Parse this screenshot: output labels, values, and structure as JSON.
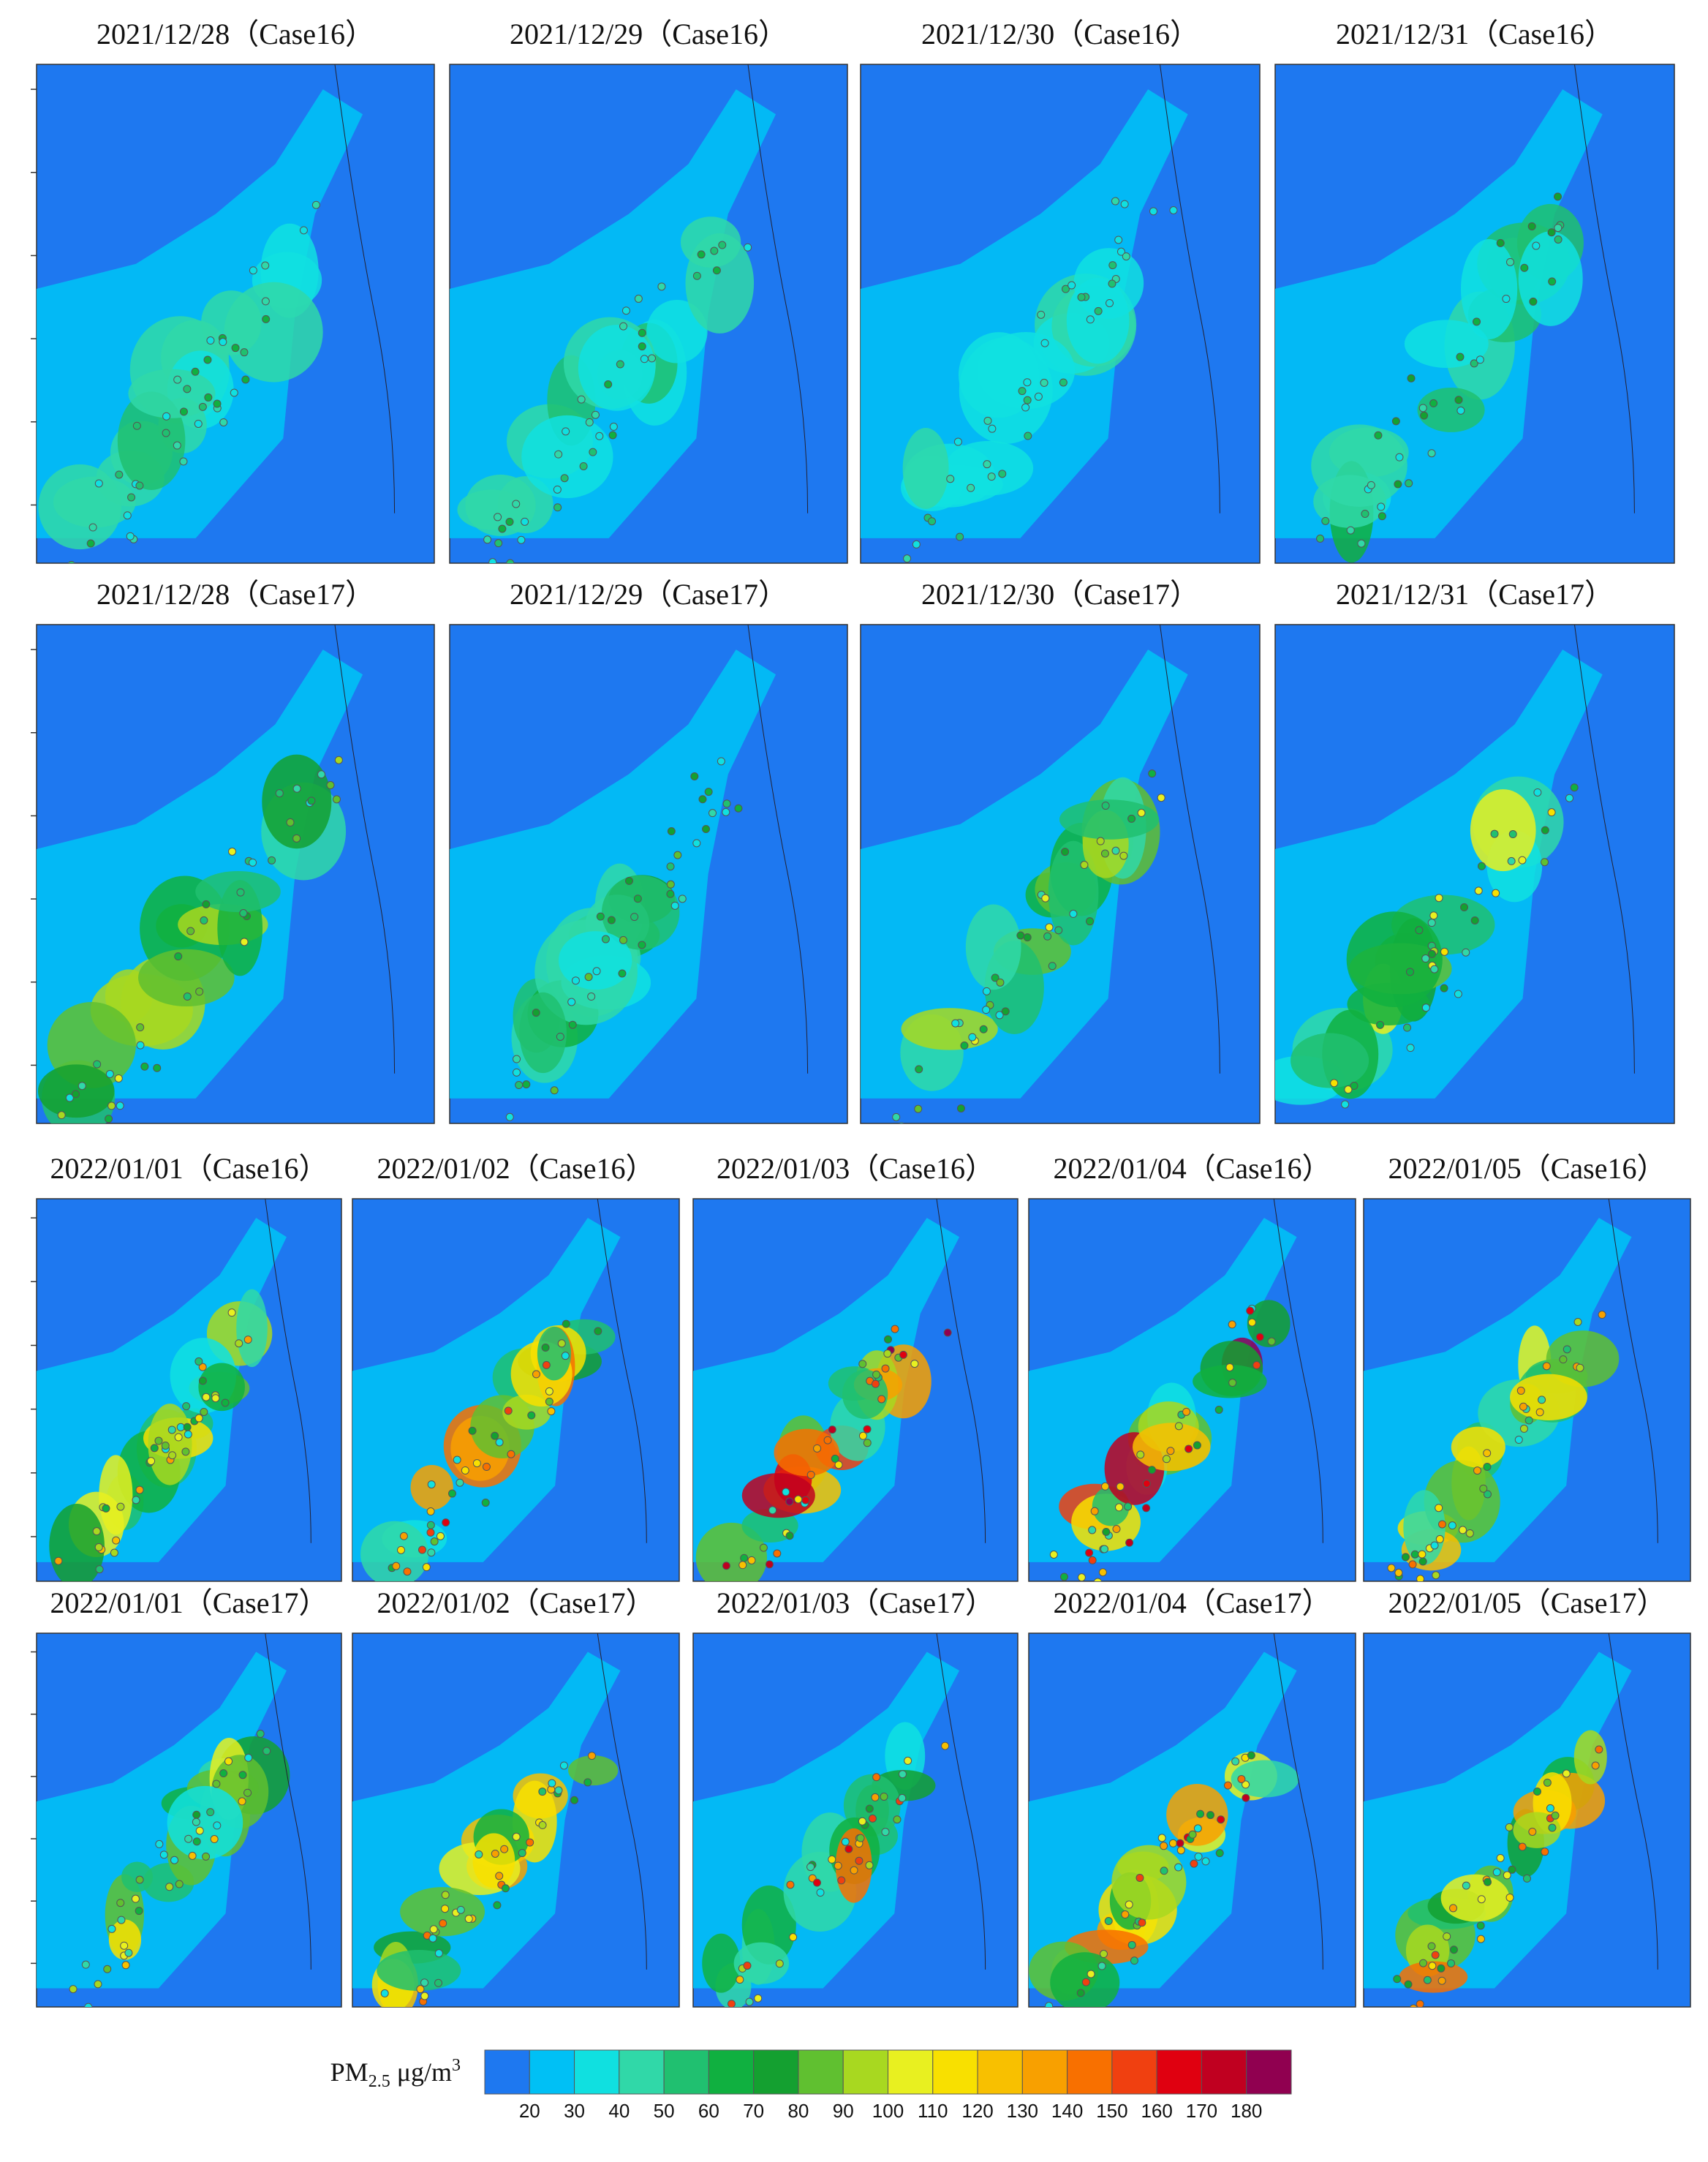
{
  "panels": [
    {
      "title": "2021/12/28（Case16）"
    },
    {
      "title": "2021/12/29（Case16）"
    },
    {
      "title": "2021/12/30（Case16）"
    },
    {
      "title": "2021/12/31（Case16）"
    },
    {
      "title": "2021/12/28（Case17）"
    },
    {
      "title": "2021/12/29（Case17）"
    },
    {
      "title": "2021/12/30（Case17）"
    },
    {
      "title": "2021/12/31（Case17）"
    },
    {
      "title": "2022/01/01（Case16）"
    },
    {
      "title": "2022/01/02（Case16）"
    },
    {
      "title": "2022/01/03（Case16）"
    },
    {
      "title": "2022/01/04（Case16）"
    },
    {
      "title": "2022/01/05（Case16）"
    },
    {
      "title": "2022/01/01（Case17）"
    },
    {
      "title": "2022/01/02（Case17）"
    },
    {
      "title": "2022/01/03（Case17）"
    },
    {
      "title": "2022/01/04（Case17）"
    },
    {
      "title": "2022/01/05（Case17）"
    }
  ],
  "colorbar": {
    "label": {
      "base": "PM",
      "sub": "2.5",
      "unit": " μg/m",
      "sup": "3"
    },
    "colors": [
      "#1e78f0",
      "#00c0f5",
      "#10e0e0",
      "#30d8a8",
      "#20c070",
      "#10b040",
      "#14a030",
      "#60c030",
      "#a8d820",
      "#e8f020",
      "#f8e000",
      "#f8c000",
      "#f8a000",
      "#f87000",
      "#f04010",
      "#e00010",
      "#c00020",
      "#900050"
    ],
    "ticks": [
      20,
      30,
      40,
      50,
      60,
      70,
      80,
      90,
      100,
      110,
      120,
      130,
      140,
      150,
      160,
      170,
      180
    ]
  }
}
